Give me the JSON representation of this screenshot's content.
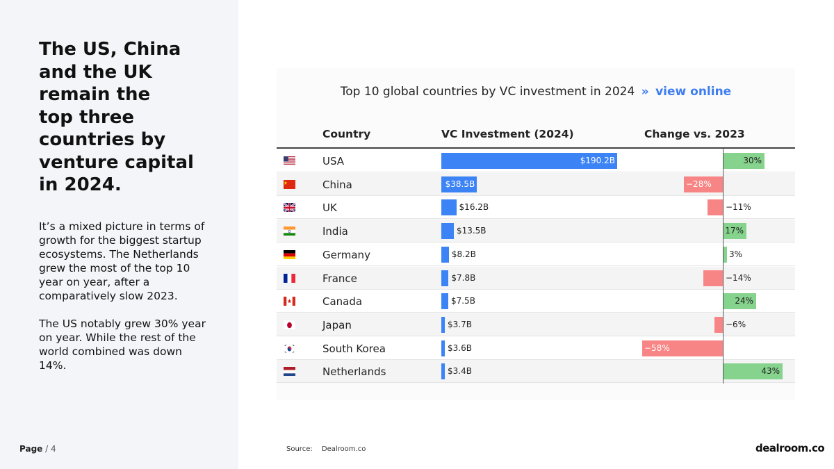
{
  "headline": [
    "The US, China",
    "and the UK",
    "remain the",
    "top three",
    "countries by",
    "venture capital",
    "in 2024."
  ],
  "paragraph1": "It’s a mixed picture in terms of growth for the biggest startup ecosystems. The Netherlands grew the most of the top 10 year on year, after a comparatively slow 2023.",
  "paragraph2": "The US notably grew 30% year on year. While the rest of the world combined was down 14%.",
  "page": {
    "label": "Page",
    "number": "/ 4"
  },
  "source": {
    "label": "Source:",
    "value": "Dealroom.co"
  },
  "brand": "dealroom.co",
  "chart_data": {
    "type": "table",
    "title": "Top 10 global countries by VC investment in 2024",
    "title_separator": "»",
    "title_link": "view online",
    "columns": [
      "Country",
      "VC Investment (2024)",
      "Change vs. 2023"
    ],
    "investment_max": 190.2,
    "change_range": [
      -60,
      45
    ],
    "rows": [
      {
        "country": "USA",
        "flag": "us-flag-icon",
        "investment": 190.2,
        "investment_label": "$190.2B",
        "change": 30,
        "change_label": "30%"
      },
      {
        "country": "China",
        "flag": "china-flag-icon",
        "investment": 38.5,
        "investment_label": "$38.5B",
        "change": -28,
        "change_label": "−28%"
      },
      {
        "country": "UK",
        "flag": "uk-flag-icon",
        "investment": 16.2,
        "investment_label": "$16.2B",
        "change": -11,
        "change_label": "−11%"
      },
      {
        "country": "India",
        "flag": "india-flag-icon",
        "investment": 13.5,
        "investment_label": "$13.5B",
        "change": 17,
        "change_label": "17%"
      },
      {
        "country": "Germany",
        "flag": "germany-flag-icon",
        "investment": 8.2,
        "investment_label": "$8.2B",
        "change": 3,
        "change_label": "3%"
      },
      {
        "country": "France",
        "flag": "france-flag-icon",
        "investment": 7.8,
        "investment_label": "$7.8B",
        "change": -14,
        "change_label": "−14%"
      },
      {
        "country": "Canada",
        "flag": "canada-flag-icon",
        "investment": 7.5,
        "investment_label": "$7.5B",
        "change": 24,
        "change_label": "24%"
      },
      {
        "country": "Japan",
        "flag": "japan-flag-icon",
        "investment": 3.7,
        "investment_label": "$3.7B",
        "change": -6,
        "change_label": "−6%"
      },
      {
        "country": "South Korea",
        "flag": "south-korea-flag-icon",
        "investment": 3.6,
        "investment_label": "$3.6B",
        "change": -58,
        "change_label": "−58%"
      },
      {
        "country": "Netherlands",
        "flag": "netherlands-flag-icon",
        "investment": 3.4,
        "investment_label": "$3.4B",
        "change": 43,
        "change_label": "43%"
      }
    ],
    "colors": {
      "investment": "#3c83f6",
      "positive": "#86d38d",
      "negative": "#f88585",
      "link": "#3d7df0"
    }
  }
}
